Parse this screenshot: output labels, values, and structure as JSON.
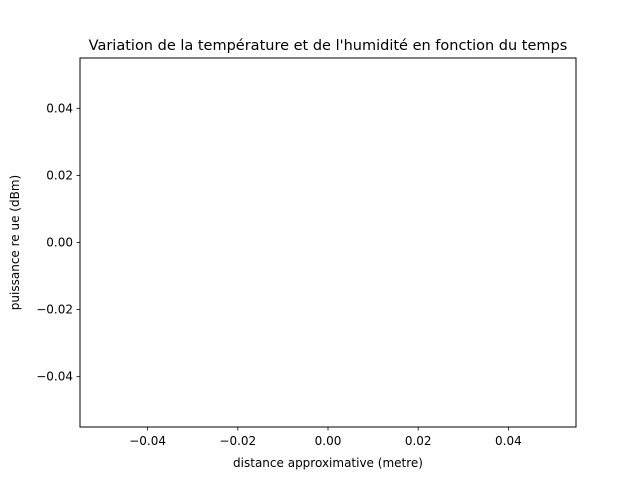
{
  "chart_data": {
    "type": "line",
    "title": "Variation de la température et de l'humidité en fonction du temps",
    "xlabel": "distance approximative (metre)",
    "ylabel": "puissance re  ue (dBm)",
    "xlim": [
      -0.055,
      0.055
    ],
    "ylim": [
      -0.055,
      0.055
    ],
    "xticks": [
      -0.04,
      -0.02,
      0.0,
      0.02,
      0.04
    ],
    "xtick_labels": [
      "−0.04",
      "−0.02",
      "0.00",
      "0.02",
      "0.04"
    ],
    "yticks": [
      -0.04,
      -0.02,
      0.0,
      0.02,
      0.04
    ],
    "ytick_labels": [
      "−0.04",
      "−0.02",
      "0.00",
      "0.02",
      "0.04"
    ],
    "grid": false,
    "series": []
  }
}
